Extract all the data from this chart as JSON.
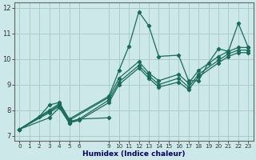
{
  "xlabel": "Humidex (Indice chaleur)",
  "xlim": [
    -0.5,
    23.5
  ],
  "ylim": [
    6.8,
    12.2
  ],
  "xticks": [
    0,
    1,
    2,
    3,
    4,
    5,
    6,
    9,
    10,
    11,
    12,
    13,
    14,
    15,
    16,
    17,
    18,
    19,
    20,
    21,
    22,
    23
  ],
  "yticks": [
    7,
    8,
    9,
    10,
    11,
    12
  ],
  "bg_color": "#cce8e8",
  "grid_color": "#aacccc",
  "line_color": "#1a6b5a",
  "series": [
    {
      "x": [
        0,
        2,
        3,
        4,
        5,
        9,
        10,
        11,
        12,
        13,
        14,
        16,
        17,
        18,
        19,
        20,
        21,
        22,
        23
      ],
      "y": [
        7.25,
        7.75,
        8.2,
        8.3,
        7.65,
        8.55,
        9.55,
        10.5,
        11.85,
        11.3,
        10.1,
        10.15,
        9.15,
        9.15,
        9.85,
        10.4,
        10.3,
        11.4,
        10.45
      ]
    },
    {
      "x": [
        0,
        3,
        4,
        5,
        9,
        10,
        12,
        13,
        14,
        16,
        17,
        18,
        20,
        21,
        22,
        23
      ],
      "y": [
        7.25,
        8.0,
        8.25,
        7.6,
        8.5,
        9.25,
        9.9,
        9.45,
        9.15,
        9.4,
        9.05,
        9.55,
        10.1,
        10.3,
        10.45,
        10.45
      ]
    },
    {
      "x": [
        0,
        3,
        4,
        5,
        6,
        9,
        10,
        12,
        13,
        14,
        16,
        17,
        18,
        20,
        21,
        22,
        23
      ],
      "y": [
        7.25,
        7.95,
        8.2,
        7.55,
        7.65,
        8.4,
        9.1,
        9.75,
        9.35,
        9.0,
        9.25,
        8.9,
        9.4,
        9.95,
        10.2,
        10.35,
        10.35
      ]
    },
    {
      "x": [
        0,
        3,
        4,
        5,
        6,
        9,
        10,
        12,
        13,
        14,
        16,
        17,
        18,
        20,
        21,
        22,
        23
      ],
      "y": [
        7.25,
        7.9,
        8.15,
        7.5,
        7.6,
        8.3,
        9.0,
        9.65,
        9.25,
        8.9,
        9.1,
        8.8,
        9.3,
        9.85,
        10.1,
        10.25,
        10.25
      ]
    },
    {
      "x": [
        0,
        3,
        4,
        5,
        6,
        9
      ],
      "y": [
        7.25,
        7.7,
        8.1,
        7.5,
        7.65,
        7.7
      ]
    }
  ]
}
